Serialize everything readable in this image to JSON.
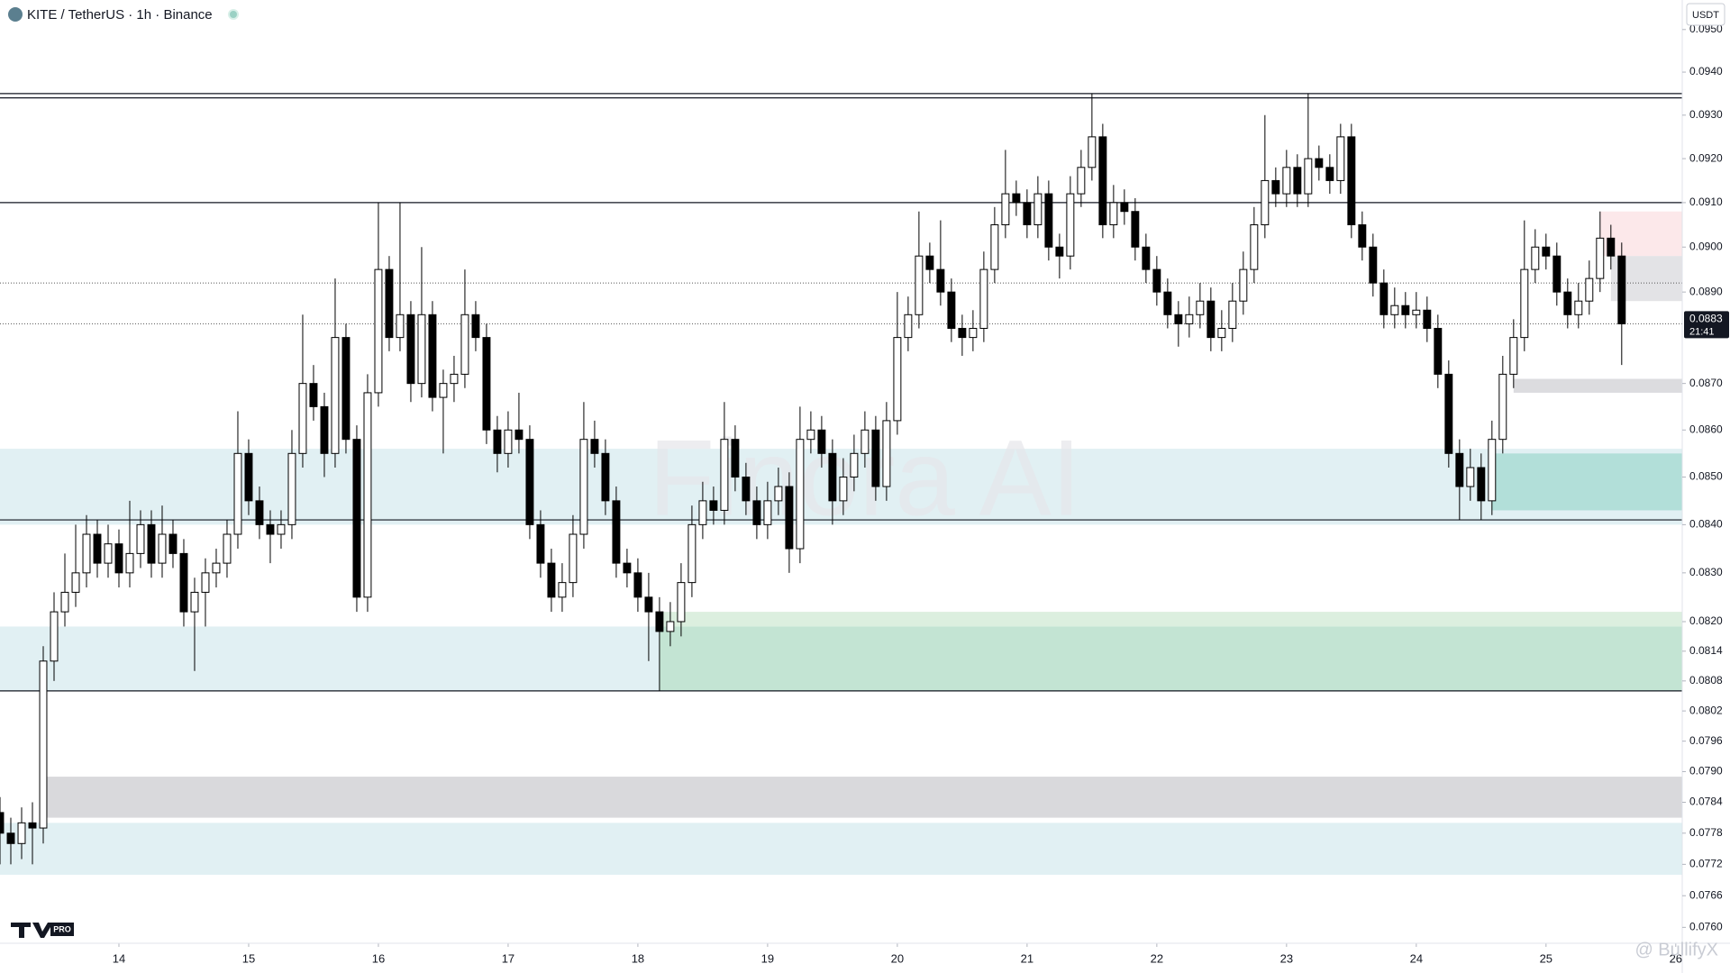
{
  "title_bar": null,
  "watermark": "Finora AI",
  "author": "@ BullifyX",
  "logo_badge": "PRO",
  "chart_data": {
    "type": "candlestick",
    "title": "KITE / TetherUS · 1h · Binance",
    "currency": "USDT",
    "log_scale": true,
    "up_color": "#ffffff",
    "down_color": "#000000",
    "outline_color": "#000000",
    "xlim": [
      0,
      155.6
    ],
    "ylim": [
      0.0757,
      0.0957
    ],
    "xticks": [
      {
        "value": 11,
        "label": "14"
      },
      {
        "value": 23,
        "label": "15"
      },
      {
        "value": 35,
        "label": "16"
      },
      {
        "value": 47,
        "label": "17"
      },
      {
        "value": 59,
        "label": "18"
      },
      {
        "value": 71,
        "label": "19"
      },
      {
        "value": 83,
        "label": "20"
      },
      {
        "value": 95,
        "label": "21"
      },
      {
        "value": 107,
        "label": "22"
      },
      {
        "value": 119,
        "label": "23"
      },
      {
        "value": 131,
        "label": "24"
      },
      {
        "value": 143,
        "label": "25"
      },
      {
        "value": 155,
        "label": "26"
      }
    ],
    "yticks": [
      {
        "value": 0.095,
        "label": "0.0950"
      },
      {
        "value": 0.094,
        "label": "0.0940"
      },
      {
        "value": 0.093,
        "label": "0.0930"
      },
      {
        "value": 0.092,
        "label": "0.0920"
      },
      {
        "value": 0.091,
        "label": "0.0910"
      },
      {
        "value": 0.09,
        "label": "0.0900"
      },
      {
        "value": 0.089,
        "label": "0.0890"
      },
      {
        "value": 0.087,
        "label": "0.0870"
      },
      {
        "value": 0.086,
        "label": "0.0860"
      },
      {
        "value": 0.085,
        "label": "0.0850"
      },
      {
        "value": 0.084,
        "label": "0.0840"
      },
      {
        "value": 0.083,
        "label": "0.0830"
      },
      {
        "value": 0.082,
        "label": "0.0820"
      },
      0.0814,
      0.0808,
      0.0802,
      0.0796,
      {
        "value": 0.079,
        "label": "0.0790"
      },
      0.0784,
      0.0778,
      0.0772,
      0.0766,
      {
        "value": 0.076,
        "label": "0.0760"
      }
    ],
    "last_price": 0.0883,
    "countdown": "21:41",
    "zones": [
      {
        "from": 0,
        "top": 0.0856,
        "bottom": 0.084,
        "color": "#e1f0f3"
      },
      {
        "from": 0,
        "top": 0.0819,
        "bottom": 0.0806,
        "color": "#e1f0f3"
      },
      {
        "from": 61,
        "top": 0.0822,
        "bottom": 0.0819,
        "color": "#dcefdf"
      },
      {
        "from": 61,
        "top": 0.0819,
        "bottom": 0.0806,
        "color": "#c3e4d3"
      },
      {
        "from": 4,
        "top": 0.0789,
        "bottom": 0.0781,
        "color": "#d9d9dc"
      },
      {
        "from": 0,
        "top": 0.078,
        "bottom": 0.077,
        "color": "#e1f0f3"
      },
      {
        "from": 138,
        "top": 0.0855,
        "bottom": 0.0843,
        "color": "#b2dfd9"
      },
      {
        "from": 140,
        "top": 0.0871,
        "bottom": 0.0868,
        "color": "#dcdcdf"
      },
      {
        "from": 148,
        "top": 0.0908,
        "bottom": 0.0898,
        "color": "#fce8ea"
      },
      {
        "from": 149,
        "top": 0.0898,
        "bottom": 0.0888,
        "color": "#e3e3e6"
      }
    ],
    "levels": [
      {
        "value": 0.0935,
        "style": "solid"
      },
      {
        "value": 0.0934,
        "style": "solid"
      },
      {
        "value": 0.091,
        "style": "solid"
      },
      {
        "value": 0.0841,
        "style": "solid"
      },
      {
        "value": 0.0806,
        "style": "solid"
      },
      {
        "value": 0.0892,
        "style": "dotted"
      }
    ],
    "series": [
      {
        "name": "KITE / TetherUS",
        "values": [
          [
            0.0782,
            0.0785,
            0.0772,
            0.0778
          ],
          [
            0.0778,
            0.0781,
            0.0772,
            0.0776
          ],
          [
            0.0776,
            0.0783,
            0.0773,
            0.078
          ],
          [
            0.078,
            0.0784,
            0.0772,
            0.0779
          ],
          [
            0.0779,
            0.0815,
            0.0776,
            0.0812
          ],
          [
            0.0812,
            0.0826,
            0.0808,
            0.0822
          ],
          [
            0.0822,
            0.0834,
            0.0819,
            0.0826
          ],
          [
            0.0826,
            0.084,
            0.0823,
            0.083
          ],
          [
            0.083,
            0.0842,
            0.0827,
            0.0838
          ],
          [
            0.0838,
            0.0841,
            0.0829,
            0.0832
          ],
          [
            0.0832,
            0.084,
            0.0829,
            0.0836
          ],
          [
            0.0836,
            0.0839,
            0.0827,
            0.083
          ],
          [
            0.083,
            0.0845,
            0.0827,
            0.0834
          ],
          [
            0.0834,
            0.0843,
            0.0831,
            0.084
          ],
          [
            0.084,
            0.0843,
            0.0829,
            0.0832
          ],
          [
            0.0832,
            0.0844,
            0.0829,
            0.0838
          ],
          [
            0.0838,
            0.0841,
            0.0831,
            0.0834
          ],
          [
            0.0834,
            0.0837,
            0.0819,
            0.0822
          ],
          [
            0.0822,
            0.0829,
            0.081,
            0.0826
          ],
          [
            0.0826,
            0.0833,
            0.0819,
            0.083
          ],
          [
            0.083,
            0.0835,
            0.0827,
            0.0832
          ],
          [
            0.0832,
            0.0841,
            0.0829,
            0.0838
          ],
          [
            0.0838,
            0.0864,
            0.0835,
            0.0855
          ],
          [
            0.0855,
            0.0858,
            0.0842,
            0.0845
          ],
          [
            0.0845,
            0.0848,
            0.0837,
            0.084
          ],
          [
            0.084,
            0.0843,
            0.0832,
            0.0838
          ],
          [
            0.0838,
            0.0843,
            0.0835,
            0.084
          ],
          [
            0.084,
            0.086,
            0.0837,
            0.0855
          ],
          [
            0.0855,
            0.0885,
            0.0852,
            0.087
          ],
          [
            0.087,
            0.0874,
            0.0862,
            0.0865
          ],
          [
            0.0865,
            0.0868,
            0.085,
            0.0855
          ],
          [
            0.0855,
            0.0893,
            0.0852,
            0.088
          ],
          [
            0.088,
            0.0883,
            0.0855,
            0.0858
          ],
          [
            0.0858,
            0.0861,
            0.0822,
            0.0825
          ],
          [
            0.0825,
            0.0872,
            0.0822,
            0.0868
          ],
          [
            0.0868,
            0.091,
            0.0865,
            0.0895
          ],
          [
            0.0895,
            0.0898,
            0.0877,
            0.088
          ],
          [
            0.088,
            0.091,
            0.0877,
            0.0885
          ],
          [
            0.0885,
            0.0888,
            0.0866,
            0.087
          ],
          [
            0.087,
            0.09,
            0.0867,
            0.0885
          ],
          [
            0.0885,
            0.0888,
            0.0864,
            0.0867
          ],
          [
            0.0867,
            0.0873,
            0.0855,
            0.087
          ],
          [
            0.087,
            0.0876,
            0.0866,
            0.0872
          ],
          [
            0.0872,
            0.0895,
            0.0869,
            0.0885
          ],
          [
            0.0885,
            0.0888,
            0.0877,
            0.088
          ],
          [
            0.088,
            0.0883,
            0.0857,
            0.086
          ],
          [
            0.086,
            0.0863,
            0.0851,
            0.0855
          ],
          [
            0.0855,
            0.0864,
            0.0852,
            0.086
          ],
          [
            0.086,
            0.0868,
            0.0855,
            0.0858
          ],
          [
            0.0858,
            0.0861,
            0.0837,
            0.084
          ],
          [
            0.084,
            0.0843,
            0.0829,
            0.0832
          ],
          [
            0.0832,
            0.0835,
            0.0822,
            0.0825
          ],
          [
            0.0825,
            0.0832,
            0.0822,
            0.0828
          ],
          [
            0.0828,
            0.0842,
            0.0825,
            0.0838
          ],
          [
            0.0838,
            0.0866,
            0.0835,
            0.0858
          ],
          [
            0.0858,
            0.0862,
            0.0852,
            0.0855
          ],
          [
            0.0855,
            0.0858,
            0.0842,
            0.0845
          ],
          [
            0.0845,
            0.0848,
            0.0829,
            0.0832
          ],
          [
            0.0832,
            0.0835,
            0.0827,
            0.083
          ],
          [
            0.083,
            0.0833,
            0.0822,
            0.0825
          ],
          [
            0.0825,
            0.083,
            0.0812,
            0.0822
          ],
          [
            0.0822,
            0.0825,
            0.0806,
            0.0818
          ],
          [
            0.0818,
            0.0824,
            0.0815,
            0.082
          ],
          [
            0.082,
            0.0832,
            0.0817,
            0.0828
          ],
          [
            0.0828,
            0.0844,
            0.0825,
            0.084
          ],
          [
            0.084,
            0.0849,
            0.0837,
            0.0845
          ],
          [
            0.0845,
            0.0848,
            0.084,
            0.0843
          ],
          [
            0.0843,
            0.0866,
            0.084,
            0.0858
          ],
          [
            0.0858,
            0.0861,
            0.0847,
            0.085
          ],
          [
            0.085,
            0.0853,
            0.0842,
            0.0845
          ],
          [
            0.0845,
            0.0848,
            0.0837,
            0.084
          ],
          [
            0.084,
            0.0849,
            0.0837,
            0.0845
          ],
          [
            0.0845,
            0.0852,
            0.0842,
            0.0848
          ],
          [
            0.0848,
            0.0851,
            0.083,
            0.0835
          ],
          [
            0.0835,
            0.0865,
            0.0832,
            0.0858
          ],
          [
            0.0858,
            0.0864,
            0.0855,
            0.086
          ],
          [
            0.086,
            0.0863,
            0.0852,
            0.0855
          ],
          [
            0.0855,
            0.0858,
            0.084,
            0.0845
          ],
          [
            0.0845,
            0.0854,
            0.0842,
            0.085
          ],
          [
            0.085,
            0.0859,
            0.0847,
            0.0855
          ],
          [
            0.0855,
            0.0864,
            0.0852,
            0.086
          ],
          [
            0.086,
            0.0863,
            0.0845,
            0.0848
          ],
          [
            0.0848,
            0.0866,
            0.0845,
            0.0862
          ],
          [
            0.0862,
            0.089,
            0.0859,
            0.088
          ],
          [
            0.088,
            0.0889,
            0.0877,
            0.0885
          ],
          [
            0.0885,
            0.0908,
            0.0882,
            0.0898
          ],
          [
            0.0898,
            0.0901,
            0.0892,
            0.0895
          ],
          [
            0.0895,
            0.0906,
            0.0887,
            0.089
          ],
          [
            0.089,
            0.0893,
            0.0879,
            0.0882
          ],
          [
            0.0882,
            0.0885,
            0.0876,
            0.088
          ],
          [
            0.088,
            0.0886,
            0.0877,
            0.0882
          ],
          [
            0.0882,
            0.0899,
            0.0879,
            0.0895
          ],
          [
            0.0895,
            0.0909,
            0.0892,
            0.0905
          ],
          [
            0.0905,
            0.0922,
            0.0902,
            0.0912
          ],
          [
            0.0912,
            0.0915,
            0.0907,
            0.091
          ],
          [
            0.091,
            0.0913,
            0.0902,
            0.0905
          ],
          [
            0.0905,
            0.0916,
            0.0902,
            0.0912
          ],
          [
            0.0912,
            0.0915,
            0.0897,
            0.09
          ],
          [
            0.09,
            0.0903,
            0.0893,
            0.0898
          ],
          [
            0.0898,
            0.0916,
            0.0895,
            0.0912
          ],
          [
            0.0912,
            0.0922,
            0.0909,
            0.0918
          ],
          [
            0.0918,
            0.0935,
            0.0915,
            0.0925
          ],
          [
            0.0925,
            0.0928,
            0.0902,
            0.0905
          ],
          [
            0.0905,
            0.0914,
            0.0902,
            0.091
          ],
          [
            0.091,
            0.0913,
            0.0905,
            0.0908
          ],
          [
            0.0908,
            0.0911,
            0.0897,
            0.09
          ],
          [
            0.09,
            0.0903,
            0.0892,
            0.0895
          ],
          [
            0.0895,
            0.0898,
            0.0887,
            0.089
          ],
          [
            0.089,
            0.0893,
            0.0882,
            0.0885
          ],
          [
            0.0885,
            0.0888,
            0.0878,
            0.0883
          ],
          [
            0.0883,
            0.0889,
            0.088,
            0.0885
          ],
          [
            0.0885,
            0.0892,
            0.0882,
            0.0888
          ],
          [
            0.0888,
            0.0891,
            0.0877,
            0.088
          ],
          [
            0.088,
            0.0886,
            0.0877,
            0.0882
          ],
          [
            0.0882,
            0.0892,
            0.0879,
            0.0888
          ],
          [
            0.0888,
            0.0899,
            0.0885,
            0.0895
          ],
          [
            0.0895,
            0.0909,
            0.0892,
            0.0905
          ],
          [
            0.0905,
            0.093,
            0.0902,
            0.0915
          ],
          [
            0.0915,
            0.0918,
            0.0909,
            0.0912
          ],
          [
            0.0912,
            0.0922,
            0.0909,
            0.0918
          ],
          [
            0.0918,
            0.0921,
            0.0909,
            0.0912
          ],
          [
            0.0912,
            0.0935,
            0.0909,
            0.092
          ],
          [
            0.092,
            0.0923,
            0.0915,
            0.0918
          ],
          [
            0.0918,
            0.0921,
            0.0912,
            0.0915
          ],
          [
            0.0915,
            0.0928,
            0.0912,
            0.0925
          ],
          [
            0.0925,
            0.0928,
            0.0902,
            0.0905
          ],
          [
            0.0905,
            0.0908,
            0.0897,
            0.09
          ],
          [
            0.09,
            0.0903,
            0.0889,
            0.0892
          ],
          [
            0.0892,
            0.0895,
            0.0882,
            0.0885
          ],
          [
            0.0885,
            0.0891,
            0.0882,
            0.0887
          ],
          [
            0.0887,
            0.089,
            0.0882,
            0.0885
          ],
          [
            0.0885,
            0.089,
            0.0882,
            0.0886
          ],
          [
            0.0886,
            0.0889,
            0.0879,
            0.0882
          ],
          [
            0.0882,
            0.0885,
            0.0869,
            0.0872
          ],
          [
            0.0872,
            0.0875,
            0.0852,
            0.0855
          ],
          [
            0.0855,
            0.0858,
            0.0841,
            0.0848
          ],
          [
            0.0848,
            0.0856,
            0.0845,
            0.0852
          ],
          [
            0.0852,
            0.0855,
            0.0841,
            0.0845
          ],
          [
            0.0845,
            0.0862,
            0.0842,
            0.0858
          ],
          [
            0.0858,
            0.0876,
            0.0855,
            0.0872
          ],
          [
            0.0872,
            0.0884,
            0.0869,
            0.088
          ],
          [
            0.088,
            0.0906,
            0.0877,
            0.0895
          ],
          [
            0.0895,
            0.0904,
            0.0892,
            0.09
          ],
          [
            0.09,
            0.0903,
            0.0895,
            0.0898
          ],
          [
            0.0898,
            0.0901,
            0.0887,
            0.089
          ],
          [
            0.089,
            0.0893,
            0.0882,
            0.0885
          ],
          [
            0.0885,
            0.0892,
            0.0882,
            0.0888
          ],
          [
            0.0888,
            0.0897,
            0.0885,
            0.0893
          ],
          [
            0.0893,
            0.0908,
            0.089,
            0.0902
          ],
          [
            0.0902,
            0.0905,
            0.0895,
            0.0898
          ],
          [
            0.0898,
            0.0901,
            0.0874,
            0.0883
          ]
        ]
      }
    ]
  }
}
